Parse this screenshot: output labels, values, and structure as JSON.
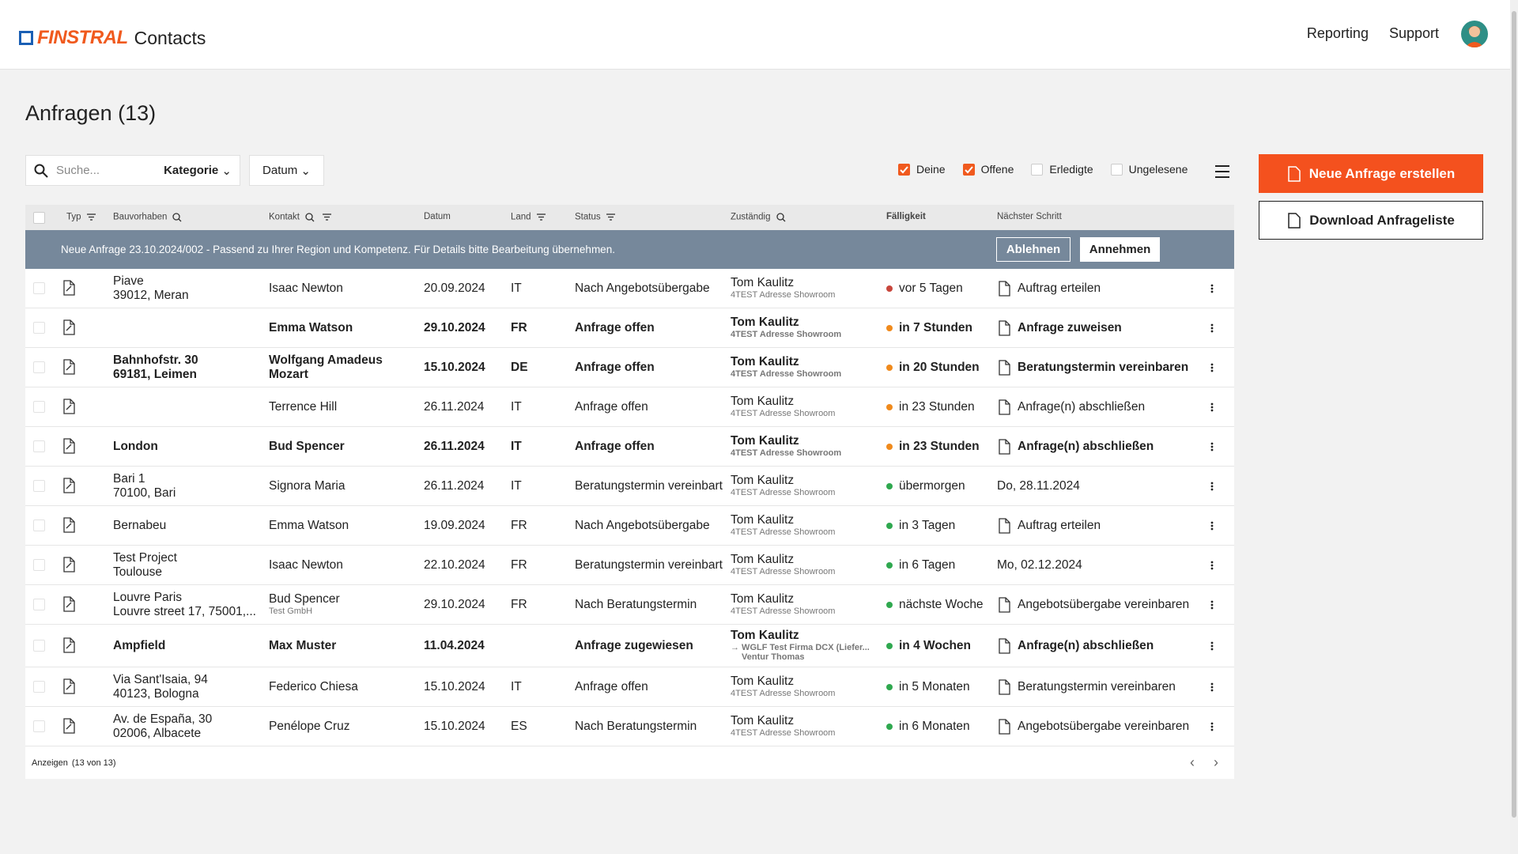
{
  "header": {
    "brand": "FINSTRAL",
    "app": "Contacts",
    "nav": [
      "Reporting",
      "Support"
    ]
  },
  "title": "Anfragen (13)",
  "toolbar": {
    "search_placeholder": "Suche...",
    "filters": [
      "Kategorie",
      "Datum"
    ],
    "checks": [
      {
        "label": "Deine",
        "checked": true
      },
      {
        "label": "Offene",
        "checked": true
      },
      {
        "label": "Erledigte",
        "checked": false
      },
      {
        "label": "Ungelesene",
        "checked": false
      }
    ]
  },
  "buttons": {
    "primary": "Neue Anfrage erstellen",
    "secondary": "Download Anfrageliste"
  },
  "table": {
    "columns": [
      "Typ",
      "Bauvorhaben",
      "Kontakt",
      "Datum",
      "Land",
      "Status",
      "Zuständig",
      "Fälligkeit",
      "Nächster Schritt"
    ],
    "banner": {
      "text": "Neue Anfrage 23.10.2024/002 - Passend zu Ihrer Region und Kompetenz. Für Details bitte Bearbeitung übernehmen.",
      "reject": "Ablehnen",
      "accept": "Annehmen"
    },
    "rows": [
      {
        "bauvorhaben": [
          "Piave",
          "39012, Meran"
        ],
        "kontakt": "Isaac Newton",
        "datum": "20.09.2024",
        "land": "IT",
        "status": "Nach Angebotsübergabe",
        "zustaendig": "Tom Kaulitz",
        "zustaendig_info": "4TEST Adresse Showroom",
        "faelligkeit": "vor 5 Tagen",
        "dot": "#c8463c",
        "naechster_schritt": "Auftrag erteilen",
        "bold": false
      },
      {
        "bauvorhaben": [],
        "kontakt": "Emma Watson",
        "datum": "29.10.2024",
        "land": "FR",
        "status": "Anfrage offen",
        "zustaendig": "Tom Kaulitz",
        "zustaendig_info": "4TEST Adresse Showroom",
        "faelligkeit": "in 7 Stunden",
        "dot": "#f08a1c",
        "naechster_schritt": "Anfrage zuweisen",
        "bold": true
      },
      {
        "bauvorhaben": [
          "Bahnhofstr. 30",
          "69181, Leimen"
        ],
        "kontakt": "Wolfgang Amadeus Mozart",
        "datum": "15.10.2024",
        "land": "DE",
        "status": "Anfrage offen",
        "zustaendig": "Tom Kaulitz",
        "zustaendig_info": "4TEST Adresse Showroom",
        "faelligkeit": "in 20 Stunden",
        "dot": "#f08a1c",
        "naechster_schritt": "Beratungstermin vereinbaren",
        "bold": true
      },
      {
        "bauvorhaben": [],
        "kontakt": "Terrence Hill",
        "datum": "26.11.2024",
        "land": "IT",
        "status": "Anfrage offen",
        "zustaendig": "Tom Kaulitz",
        "zustaendig_info": "4TEST Adresse Showroom",
        "faelligkeit": "in 23 Stunden",
        "dot": "#f08a1c",
        "naechster_schritt": "Anfrage(n) abschließen",
        "bold": false
      },
      {
        "bauvorhaben": [
          "London"
        ],
        "kontakt": "Bud Spencer",
        "datum": "26.11.2024",
        "land": "IT",
        "status": "Anfrage offen",
        "zustaendig": "Tom Kaulitz",
        "zustaendig_info": "4TEST Adresse Showroom",
        "faelligkeit": "in 23 Stunden",
        "dot": "#f08a1c",
        "naechster_schritt": "Anfrage(n) abschließen",
        "bold": true
      },
      {
        "bauvorhaben": [
          "Bari 1",
          "70100, Bari"
        ],
        "kontakt": "Signora Maria",
        "datum": "26.11.2024",
        "land": "IT",
        "status": "Beratungstermin vereinbart",
        "zustaendig": "Tom Kaulitz",
        "zustaendig_info": "4TEST Adresse Showroom",
        "faelligkeit": "übermorgen",
        "dot": "#2fa84f",
        "naechster_schritt": "Do, 28.11.2024",
        "bold": false
      },
      {
        "bauvorhaben": [
          "Bernabeu"
        ],
        "kontakt": "Emma Watson",
        "datum": "19.09.2024",
        "land": "FR",
        "status": "Nach Angebotsübergabe",
        "zustaendig": "Tom Kaulitz",
        "zustaendig_info": "4TEST Adresse Showroom",
        "faelligkeit": "in 3 Tagen",
        "dot": "#2fa84f",
        "naechster_schritt": "Auftrag erteilen",
        "bold": false
      },
      {
        "bauvorhaben": [
          "Test Project",
          "Toulouse"
        ],
        "kontakt": "Isaac Newton",
        "datum": "22.10.2024",
        "land": "FR",
        "status": "Beratungstermin vereinbart",
        "zustaendig": "Tom Kaulitz",
        "zustaendig_info": "4TEST Adresse Showroom",
        "faelligkeit": "in 6 Tagen",
        "dot": "#2fa84f",
        "naechster_schritt": "Mo, 02.12.2024",
        "bold": false
      },
      {
        "bauvorhaben": [
          "Louvre Paris",
          "Louvre street 17, 75001,..."
        ],
        "kontakt": "Bud Spencer",
        "kontakt_info": "Test GmbH",
        "datum": "29.10.2024",
        "land": "FR",
        "status": "Nach Beratungstermin",
        "zustaendig": "Tom Kaulitz",
        "zustaendig_info": "4TEST Adresse Showroom",
        "faelligkeit": "nächste Woche",
        "dot": "#2fa84f",
        "naechster_schritt": "Angebotsübergabe vereinbaren",
        "bold": false
      },
      {
        "bauvorhaben": [
          "Ampfield"
        ],
        "kontakt": "Max Muster",
        "datum": "11.04.2024",
        "land": null,
        "status": "Anfrage zugewiesen",
        "zustaendig": "Tom Kaulitz",
        "zustaendig_info": [
          "→ WGLF Test Firma DCX (Liefer...",
          "Ventur Thomas"
        ],
        "faelligkeit": "in 4 Wochen",
        "dot": "#2fa84f",
        "naechster_schritt": "Anfrage(n) abschließen",
        "bold": true
      },
      {
        "bauvorhaben": [
          "Via Sant'Isaia, 94",
          "40123, Bologna"
        ],
        "kontakt": "Federico Chiesa",
        "datum": "15.10.2024",
        "land": "IT",
        "status": "Anfrage offen",
        "zustaendig": "Tom Kaulitz",
        "zustaendig_info": "4TEST Adresse Showroom",
        "faelligkeit": "in 5 Monaten",
        "dot": "#2fa84f",
        "naechster_schritt": "Beratungstermin vereinbaren",
        "bold": false
      },
      {
        "bauvorhaben": [
          "Av. de España, 30",
          "02006, Albacete"
        ],
        "kontakt": "Penélope Cruz",
        "datum": "15.10.2024",
        "land": "ES",
        "status": "Nach Beratungstermin",
        "zustaendig": "Tom Kaulitz",
        "zustaendig_info": "4TEST Adresse Showroom",
        "faelligkeit": "in 6 Monaten",
        "dot": "#2fa84f",
        "naechster_schritt": "Angebotsübergabe vereinbaren",
        "bold": false
      }
    ],
    "footer": {
      "label": "Anzeigen",
      "count": "(13 von 13)"
    }
  }
}
